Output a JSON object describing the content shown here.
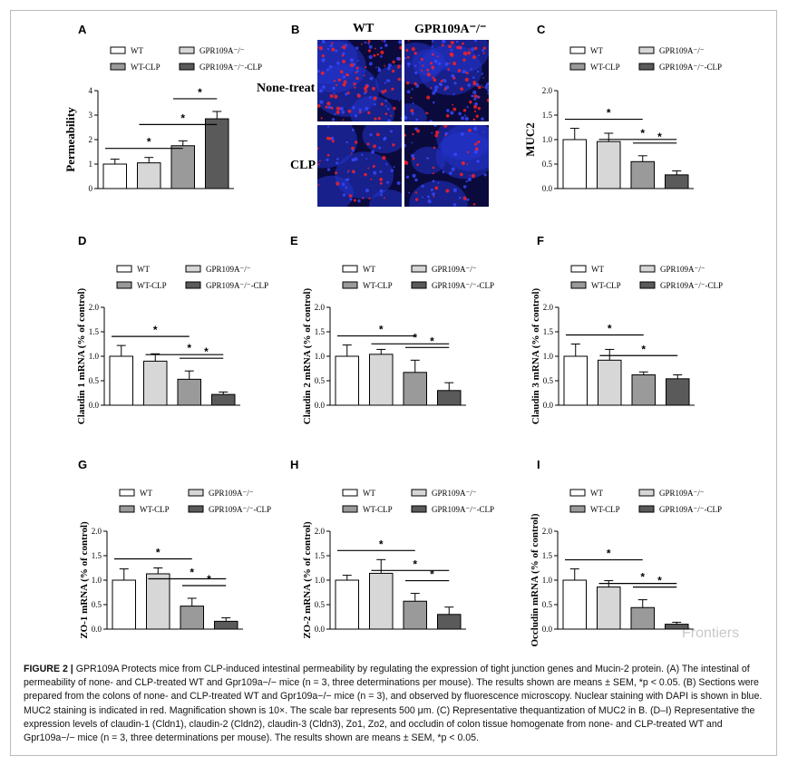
{
  "legend_labels": [
    "WT",
    "GPR109A⁻/⁻",
    "WT-CLP",
    "GPR109A⁻/⁻-CLP"
  ],
  "bar_colors": [
    "#ffffff",
    "#d7d7d7",
    "#9a9a9a",
    "#5a5a5a"
  ],
  "fluorescence": {
    "label": "B",
    "col_headers": [
      "WT",
      "GPR109A⁻/⁻"
    ],
    "row_headers": [
      "None-treat",
      "CLP"
    ]
  },
  "chart_data": [
    {
      "id": "A",
      "type": "bar",
      "ylabel": "Permeability",
      "ylim": [
        0,
        4
      ],
      "yticks": [
        "0",
        "1",
        "2",
        "3",
        "4"
      ],
      "categories": [
        "WT",
        "GPR109A-/-",
        "WT-CLP",
        "GPR109A-/--CLP"
      ],
      "values": [
        1.0,
        1.05,
        1.75,
        2.85
      ],
      "errors": [
        0.2,
        0.22,
        0.2,
        0.3
      ],
      "sig": [
        "*",
        "*",
        "*"
      ]
    },
    {
      "id": "C",
      "type": "bar",
      "ylabel": "MUC2",
      "ylim": [
        0,
        2.0
      ],
      "yticks": [
        "0.0",
        "0.5",
        "1.0",
        "1.5",
        "2.0"
      ],
      "categories": [
        "WT",
        "GPR109A-/-",
        "WT-CLP",
        "GPR109A-/--CLP"
      ],
      "values": [
        1.0,
        0.96,
        0.55,
        0.28
      ],
      "errors": [
        0.23,
        0.17,
        0.12,
        0.08
      ],
      "sig": [
        "*",
        "*",
        "*"
      ]
    },
    {
      "id": "D",
      "type": "bar",
      "ylabel": "Claudin 1 mRNA (% of control)",
      "ylim": [
        0,
        2.0
      ],
      "yticks": [
        "0.0",
        "0.5",
        "1.0",
        "1.5",
        "2.0"
      ],
      "categories": [
        "WT",
        "GPR109A-/-",
        "WT-CLP",
        "GPR109A-/--CLP"
      ],
      "values": [
        1.0,
        0.9,
        0.53,
        0.22
      ],
      "errors": [
        0.22,
        0.15,
        0.17,
        0.05
      ],
      "sig": [
        "*",
        "*",
        "*"
      ]
    },
    {
      "id": "E",
      "type": "bar",
      "ylabel": "Claudin 2 mRNA (% of control)",
      "ylim": [
        0,
        2.0
      ],
      "yticks": [
        "0.0",
        "0.5",
        "1.0",
        "1.5",
        "2.0"
      ],
      "categories": [
        "WT",
        "GPR109A-/-",
        "WT-CLP",
        "GPR109A-/--CLP"
      ],
      "values": [
        1.0,
        1.04,
        0.67,
        0.3
      ],
      "errors": [
        0.23,
        0.1,
        0.25,
        0.16
      ],
      "sig": [
        "*",
        "*",
        "*"
      ]
    },
    {
      "id": "F",
      "type": "bar",
      "ylabel": "Claudin 3 mRNA (% of control)",
      "ylim": [
        0,
        2.0
      ],
      "yticks": [
        "0.0",
        "0.5",
        "1.0",
        "1.5",
        "2.0"
      ],
      "categories": [
        "WT",
        "GPR109A-/-",
        "WT-CLP",
        "GPR109A-/--CLP"
      ],
      "values": [
        1.0,
        0.92,
        0.62,
        0.54
      ],
      "errors": [
        0.25,
        0.22,
        0.06,
        0.08
      ],
      "sig": [
        "*",
        "*"
      ]
    },
    {
      "id": "G",
      "type": "bar",
      "ylabel": "ZO-1 mRNA (% of control)",
      "ylim": [
        0,
        2.0
      ],
      "yticks": [
        "0.0",
        "0.5",
        "1.0",
        "1.5",
        "2.0"
      ],
      "categories": [
        "WT",
        "GPR109A-/-",
        "WT-CLP",
        "GPR109A-/--CLP"
      ],
      "values": [
        1.0,
        1.13,
        0.47,
        0.16
      ],
      "errors": [
        0.23,
        0.12,
        0.16,
        0.07
      ],
      "sig": [
        "*",
        "*",
        "*"
      ]
    },
    {
      "id": "H",
      "type": "bar",
      "ylabel": "ZO-2 mRNA (% of control)",
      "ylim": [
        0,
        2.0
      ],
      "yticks": [
        "0.0",
        "0.5",
        "1.0",
        "1.5",
        "2.0"
      ],
      "categories": [
        "WT",
        "GPR109A-/-",
        "WT-CLP",
        "GPR109A-/--CLP"
      ],
      "values": [
        1.0,
        1.14,
        0.57,
        0.3
      ],
      "errors": [
        0.1,
        0.28,
        0.16,
        0.15
      ],
      "sig": [
        "*",
        "*",
        "*"
      ]
    },
    {
      "id": "I",
      "type": "bar",
      "ylabel": "Occludin mRNA (% of control)",
      "ylim": [
        0,
        2.0
      ],
      "yticks": [
        "0.0",
        "0.5",
        "1.0",
        "1.5",
        "2.0"
      ],
      "categories": [
        "WT",
        "GPR109A-/-",
        "WT-CLP",
        "GPR109A-/--CLP"
      ],
      "values": [
        1.0,
        0.86,
        0.44,
        0.1
      ],
      "errors": [
        0.23,
        0.13,
        0.16,
        0.04
      ],
      "sig": [
        "*",
        "*",
        "*"
      ]
    }
  ],
  "caption": {
    "title": "FIGURE 2 | ",
    "text": "GPR109A Protects mice from CLP-induced intestinal permeability by regulating the expression of tight junction genes and Mucin-2 protein. (A) The intestinal of permeability of none- and CLP-treated WT and Gpr109a−/− mice (n = 3, three determinations per mouse). The results shown are means ± SEM, *p < 0.05. (B) Sections were prepared from the colons of none- and CLP-treated WT and Gpr109a−/− mice (n = 3), and observed by fluorescence microscopy. Nuclear staining with DAPI is shown in blue. MUC2 staining is indicated in red. Magnification shown is 10×. The scale bar represents 500 μm. (C) Representative thequantization of MUC2 in B. (D–I) Representative the expression levels of claudin-1 (Cldn1), claudin-2 (Cldn2), claudin-3 (Cldn3), Zo1, Zo2, and occludin of colon tissue homogenate from none- and CLP-treated WT and Gpr109a−/− mice (n = 3, three determinations per mouse). The results shown are means ± SEM, *p < 0.05."
  },
  "watermark": "Frontiers"
}
